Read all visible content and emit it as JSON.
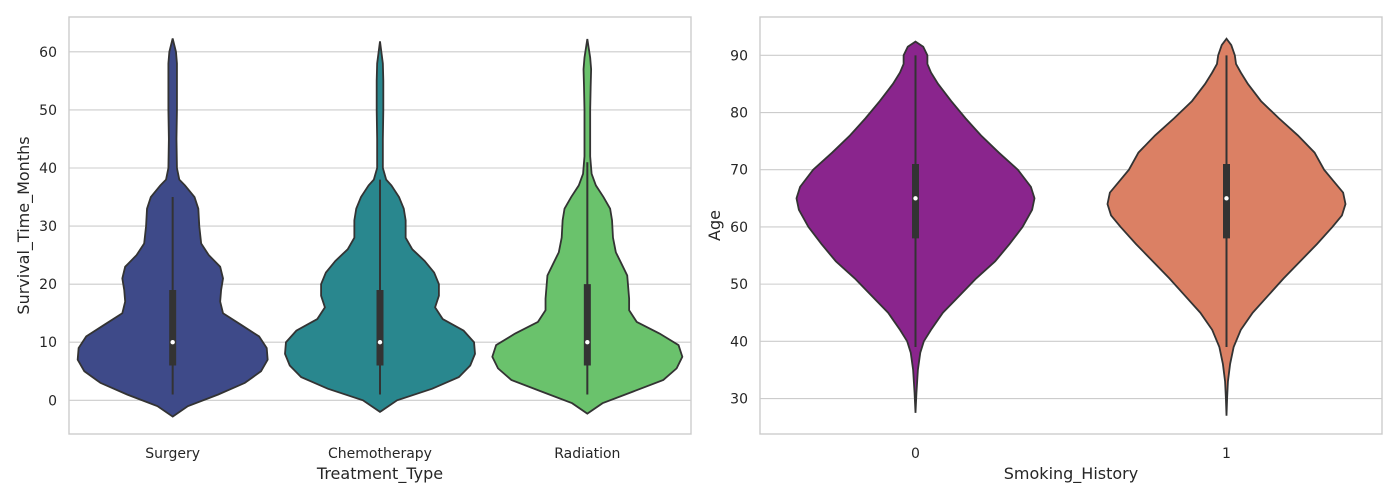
{
  "chart_data": [
    {
      "type": "violin",
      "xlabel": "Treatment_Type",
      "ylabel": "Survival_Time_Months",
      "ylim": [
        -5.8,
        66
      ],
      "yticks": [
        0,
        10,
        20,
        30,
        40,
        50,
        60
      ],
      "grid": "horizontal",
      "categories": [
        "Surgery",
        "Chemotherapy",
        "Radiation"
      ],
      "series": [
        {
          "category": "Surgery",
          "color": "#3e4a89",
          "min": 1,
          "q1": 6,
          "median": 10,
          "q3": 19,
          "max": 35,
          "density": [
            [
              -2.8,
              0
            ],
            [
              -1,
              0.16
            ],
            [
              1,
              0.48
            ],
            [
              3,
              0.76
            ],
            [
              5,
              0.93
            ],
            [
              7,
              1.0
            ],
            [
              9,
              0.99
            ],
            [
              11,
              0.91
            ],
            [
              13,
              0.72
            ],
            [
              15,
              0.53
            ],
            [
              17,
              0.5
            ],
            [
              19,
              0.51
            ],
            [
              21,
              0.53
            ],
            [
              23,
              0.5
            ],
            [
              25,
              0.38
            ],
            [
              27,
              0.3
            ],
            [
              30,
              0.28
            ],
            [
              33,
              0.27
            ],
            [
              35,
              0.23
            ],
            [
              37,
              0.13
            ],
            [
              38,
              0.07
            ],
            [
              40,
              0.045
            ],
            [
              45,
              0.04
            ],
            [
              50,
              0.045
            ],
            [
              55,
              0.045
            ],
            [
              58,
              0.045
            ],
            [
              60,
              0.035
            ],
            [
              62.3,
              0
            ]
          ]
        },
        {
          "category": "Chemotherapy",
          "color": "#29878e",
          "min": 1,
          "q1": 6,
          "median": 10,
          "q3": 19,
          "max": 38,
          "density": [
            [
              -2,
              0
            ],
            [
              0,
              0.18
            ],
            [
              2,
              0.55
            ],
            [
              4,
              0.83
            ],
            [
              6,
              0.95
            ],
            [
              8,
              1.0
            ],
            [
              10,
              0.99
            ],
            [
              12,
              0.88
            ],
            [
              14,
              0.66
            ],
            [
              16,
              0.58
            ],
            [
              18,
              0.62
            ],
            [
              20,
              0.62
            ],
            [
              22,
              0.57
            ],
            [
              24,
              0.47
            ],
            [
              26,
              0.34
            ],
            [
              28,
              0.27
            ],
            [
              31,
              0.27
            ],
            [
              33,
              0.25
            ],
            [
              35,
              0.2
            ],
            [
              37,
              0.12
            ],
            [
              38,
              0.065
            ],
            [
              40,
              0.03
            ],
            [
              45,
              0.03
            ],
            [
              50,
              0.035
            ],
            [
              55,
              0.035
            ],
            [
              58,
              0.03
            ],
            [
              61.8,
              0
            ]
          ]
        },
        {
          "category": "Radiation",
          "color": "#6ac26c",
          "min": 1,
          "q1": 6,
          "median": 10,
          "q3": 20,
          "max": 41,
          "density": [
            [
              -2.3,
              0
            ],
            [
              -0.5,
              0.16
            ],
            [
              1.5,
              0.48
            ],
            [
              3.5,
              0.8
            ],
            [
              5.5,
              0.94
            ],
            [
              7.5,
              1.0
            ],
            [
              9.5,
              0.96
            ],
            [
              11.5,
              0.76
            ],
            [
              13.5,
              0.52
            ],
            [
              15.5,
              0.44
            ],
            [
              17.5,
              0.44
            ],
            [
              19.5,
              0.43
            ],
            [
              21.5,
              0.42
            ],
            [
              23.5,
              0.36
            ],
            [
              25.5,
              0.3
            ],
            [
              28,
              0.27
            ],
            [
              31,
              0.26
            ],
            [
              33,
              0.24
            ],
            [
              35,
              0.17
            ],
            [
              37,
              0.09
            ],
            [
              39,
              0.045
            ],
            [
              42,
              0.03
            ],
            [
              46,
              0.03
            ],
            [
              50,
              0.03
            ],
            [
              54,
              0.035
            ],
            [
              57,
              0.04
            ],
            [
              59,
              0.03
            ],
            [
              62.2,
              0
            ]
          ]
        }
      ]
    },
    {
      "type": "violin",
      "xlabel": "Smoking_History",
      "ylabel": "Age",
      "ylim": [
        23.8,
        96.7
      ],
      "yticks": [
        30,
        40,
        50,
        60,
        70,
        80,
        90
      ],
      "grid": "horizontal",
      "categories": [
        "0",
        "1"
      ],
      "series": [
        {
          "category": "0",
          "color": "#8a258d",
          "min": 39,
          "q1": 58,
          "median": 65,
          "q3": 71,
          "max": 90,
          "density": [
            [
              27.5,
              0
            ],
            [
              31,
              0.008
            ],
            [
              35,
              0.02
            ],
            [
              38,
              0.04
            ],
            [
              40,
              0.07
            ],
            [
              42,
              0.13
            ],
            [
              45,
              0.23
            ],
            [
              48,
              0.37
            ],
            [
              51,
              0.51
            ],
            [
              54,
              0.67
            ],
            [
              57,
              0.79
            ],
            [
              60,
              0.9
            ],
            [
              63,
              0.98
            ],
            [
              65,
              1.0
            ],
            [
              67,
              0.97
            ],
            [
              70,
              0.86
            ],
            [
              73,
              0.7
            ],
            [
              76,
              0.55
            ],
            [
              79,
              0.42
            ],
            [
              82,
              0.3
            ],
            [
              85,
              0.19
            ],
            [
              87,
              0.13
            ],
            [
              88.5,
              0.1
            ],
            [
              90,
              0.1
            ],
            [
              91.5,
              0.065
            ],
            [
              92.4,
              0
            ]
          ]
        },
        {
          "category": "1",
          "color": "#db8064",
          "min": 39,
          "q1": 58,
          "median": 65,
          "q3": 71,
          "max": 90,
          "density": [
            [
              27,
              0
            ],
            [
              30,
              0.005
            ],
            [
              33,
              0.012
            ],
            [
              36,
              0.03
            ],
            [
              39,
              0.06
            ],
            [
              42,
              0.12
            ],
            [
              45,
              0.22
            ],
            [
              48,
              0.35
            ],
            [
              51,
              0.48
            ],
            [
              54,
              0.62
            ],
            [
              57,
              0.76
            ],
            [
              60,
              0.89
            ],
            [
              62,
              0.97
            ],
            [
              64,
              1.0
            ],
            [
              66,
              0.98
            ],
            [
              68,
              0.9
            ],
            [
              70,
              0.82
            ],
            [
              73,
              0.74
            ],
            [
              76,
              0.6
            ],
            [
              79,
              0.44
            ],
            [
              82,
              0.29
            ],
            [
              85,
              0.18
            ],
            [
              87,
              0.12
            ],
            [
              88.5,
              0.08
            ],
            [
              90,
              0.07
            ],
            [
              91.8,
              0.04
            ],
            [
              92.9,
              0
            ]
          ]
        }
      ]
    }
  ]
}
